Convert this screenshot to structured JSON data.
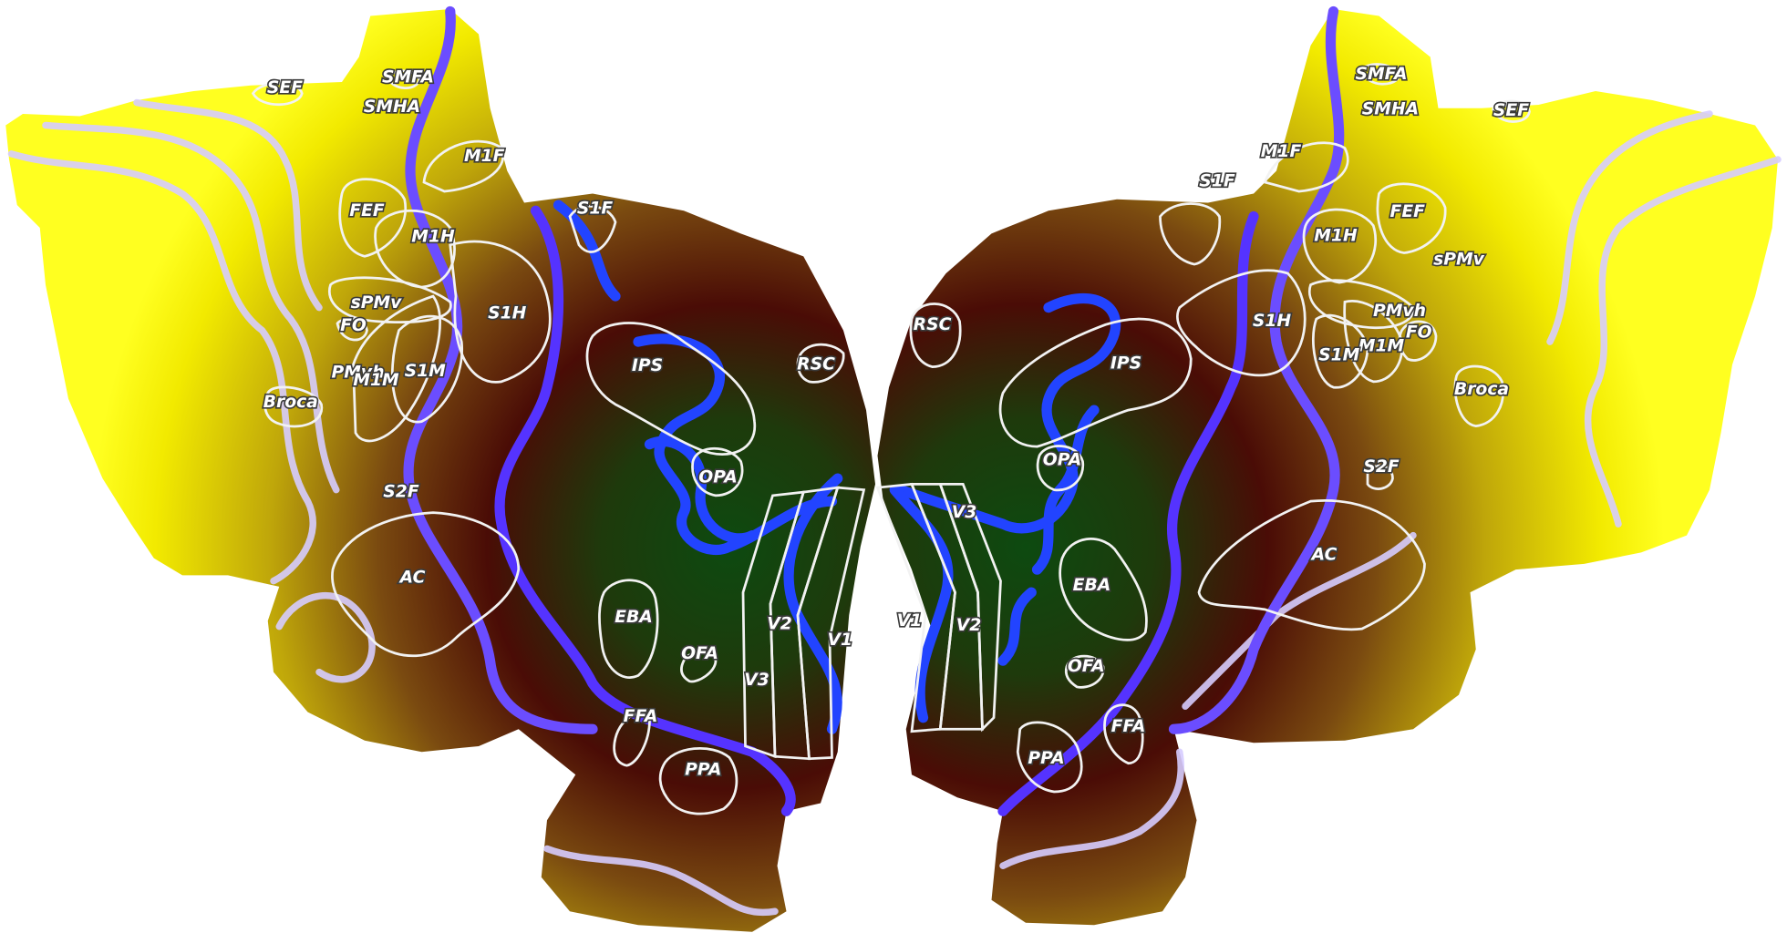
{
  "colors": {
    "background": "#ffffff",
    "outer_yellow": "#f2ea00",
    "mid_olive": "#a08a10",
    "inner_brown": "#4a0c06",
    "core_green": "#0d4a10",
    "boundary_blue": "#2244ff",
    "boundary_violet": "#6b4dff",
    "curvature_lavender": "#d6ccff",
    "roi_outline": "#f2f2f2"
  },
  "left_hemisphere": {
    "labels": {
      "sef": "SEF",
      "smfa": "SMFA",
      "smha": "SMHA",
      "m1f": "M1F",
      "s1f": "S1F",
      "fef": "FEF",
      "m1h": "M1H",
      "s1h": "S1H",
      "spmv": "sPMv",
      "fo": "FO",
      "pmvh": "PMvh",
      "m1m": "M1M",
      "s1m": "S1M",
      "broca": "Broca",
      "ips": "IPS",
      "rsc": "RSC",
      "opa": "OPA",
      "s2f": "S2F",
      "ac": "AC",
      "eba": "EBA",
      "ofa": "OFA",
      "ffa": "FFA",
      "ppa": "PPA",
      "v1": "V1",
      "v2": "V2",
      "v3": "V3"
    }
  },
  "right_hemisphere": {
    "labels": {
      "smfa": "SMFA",
      "smha": "SMHA",
      "sef": "SEF",
      "m1f": "M1F",
      "s1f": "S1F",
      "fef": "FEF",
      "m1h": "M1H",
      "spmv": "sPMv",
      "s1h": "S1H",
      "pmvh": "PMvh",
      "fo": "FO",
      "m1m": "M1M",
      "s1m": "S1M",
      "broca": "Broca",
      "rsc": "RSC",
      "ips": "IPS",
      "opa": "OPA",
      "s2f": "S2F",
      "ac": "AC",
      "eba": "EBA",
      "ofa": "OFA",
      "ffa": "FFA",
      "ppa": "PPA",
      "v1": "V1",
      "v2": "V2",
      "v3": "V3"
    }
  }
}
